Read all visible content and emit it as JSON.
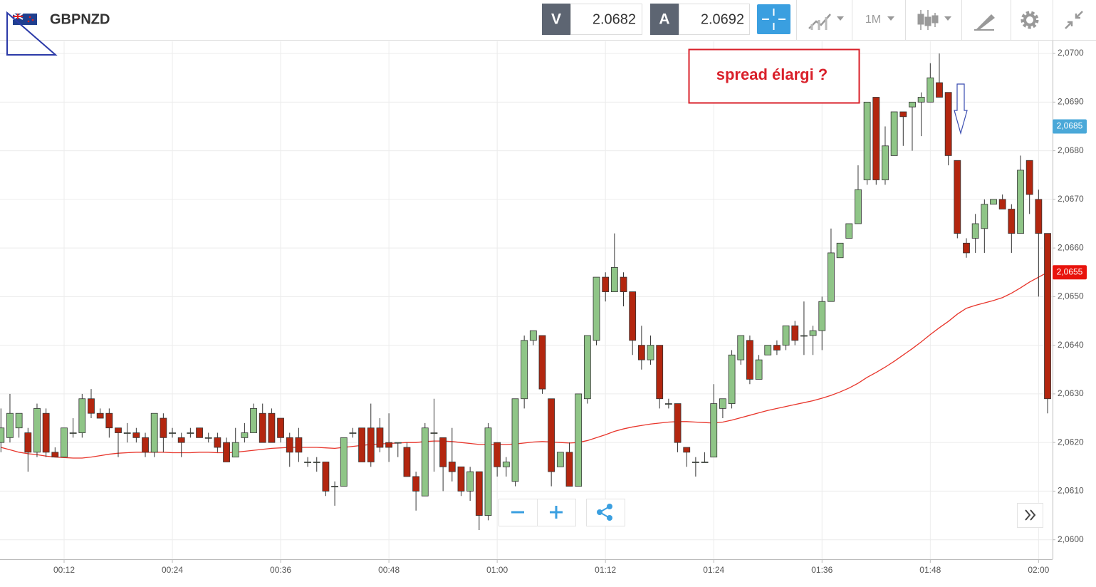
{
  "header": {
    "symbol": "GBPNZD",
    "bid_label": "V",
    "bid": 2.0682,
    "ask_label": "A",
    "ask": 2.0692,
    "timeframe": "1M"
  },
  "chart_data": {
    "type": "candlestick",
    "annotation": "spread élargi ?",
    "up_color": "#8fc587",
    "down_color": "#b3260f",
    "categories": [
      null,
      null,
      null,
      null,
      null,
      null,
      null,
      "00:12",
      null,
      null,
      null,
      null,
      null,
      null,
      null,
      null,
      null,
      null,
      null,
      "00:24",
      null,
      null,
      null,
      null,
      null,
      null,
      null,
      null,
      null,
      null,
      null,
      "00:36",
      null,
      null,
      null,
      null,
      null,
      null,
      null,
      null,
      null,
      null,
      null,
      "00:48",
      null,
      null,
      null,
      null,
      null,
      null,
      null,
      null,
      null,
      null,
      null,
      "01:00",
      null,
      null,
      null,
      null,
      null,
      null,
      null,
      null,
      null,
      null,
      null,
      "01:12",
      null,
      null,
      null,
      null,
      null,
      null,
      null,
      null,
      null,
      null,
      null,
      "01:24",
      null,
      null,
      null,
      null,
      null,
      null,
      null,
      null,
      null,
      null,
      null,
      "01:36",
      null,
      null,
      null,
      null,
      null,
      null,
      null,
      null,
      null,
      null,
      null,
      "01:48",
      null,
      null,
      null,
      null,
      null,
      null,
      null,
      null,
      null,
      null,
      null,
      "02:00",
      null
    ],
    "open": [
      2.062,
      2.0621,
      2.0623,
      2.0622,
      2.0618,
      2.0626,
      2.0618,
      2.0617,
      2.0622,
      2.0622,
      2.0629,
      2.0626,
      2.0626,
      2.0623,
      2.0622,
      2.0622,
      2.0621,
      2.0618,
      2.0625,
      2.0622,
      2.0621,
      2.0622,
      2.0623,
      2.0621,
      2.0621,
      2.062,
      2.0617,
      2.0621,
      2.0622,
      2.0626,
      2.0626,
      2.0625,
      2.0621,
      2.0621,
      2.0616,
      2.0616,
      2.0616,
      2.0611,
      2.0611,
      2.0622,
      2.0623,
      2.0623,
      2.0623,
      2.062,
      2.062,
      2.0619,
      2.0613,
      2.0609,
      2.0622,
      2.0621,
      2.0616,
      2.0615,
      2.061,
      2.0614,
      2.0605,
      2.062,
      2.0615,
      2.0612,
      2.0629,
      2.0641,
      2.0642,
      2.0629,
      2.0615,
      2.0618,
      2.0611,
      2.0629,
      2.0641,
      2.0654,
      2.0651,
      2.0654,
      2.0651,
      2.064,
      2.0637,
      2.064,
      2.0628,
      2.0628,
      2.0619,
      2.0616,
      2.0616,
      2.0617,
      2.0627,
      2.0628,
      2.0637,
      2.0641,
      2.0633,
      2.0638,
      2.064,
      2.064,
      2.0644,
      2.0642,
      2.0642,
      2.0643,
      2.0649,
      2.0658,
      2.0662,
      2.0665,
      2.0674,
      2.0691,
      2.0674,
      2.0679,
      2.0688,
      2.0689,
      2.069,
      2.069,
      2.0694,
      2.0692,
      2.0678,
      2.0661,
      2.0662,
      2.0664,
      2.0669,
      2.067,
      2.0668,
      2.0663,
      2.0678,
      2.067,
      2.0663
    ],
    "high": [
      2.0627,
      2.063,
      2.0626,
      2.0623,
      2.0628,
      2.0627,
      2.0619,
      2.0623,
      2.0625,
      2.063,
      2.0631,
      2.0627,
      2.0627,
      2.0623,
      2.0624,
      2.0623,
      2.0622,
      2.0626,
      2.0626,
      2.0623,
      2.0622,
      2.0623,
      2.0623,
      2.0622,
      2.0622,
      2.0621,
      2.0623,
      2.0624,
      2.0628,
      2.0628,
      2.0627,
      2.0625,
      2.0622,
      2.0623,
      2.0617,
      2.0617,
      2.0616,
      2.0612,
      2.0621,
      2.0623,
      2.0623,
      2.0628,
      2.0625,
      2.0626,
      2.062,
      2.062,
      2.0614,
      2.0624,
      2.0629,
      2.0621,
      2.0623,
      2.0615,
      2.0615,
      2.0614,
      2.0624,
      2.062,
      2.0617,
      2.0629,
      2.0642,
      2.0643,
      2.0642,
      2.0629,
      2.0618,
      2.062,
      2.063,
      2.0642,
      2.0654,
      2.0655,
      2.0663,
      2.0655,
      2.0651,
      2.0644,
      2.0642,
      2.064,
      2.0629,
      2.0628,
      2.0619,
      2.0617,
      2.0618,
      2.0632,
      2.0629,
      2.0639,
      2.0642,
      2.0642,
      2.0638,
      2.064,
      2.0641,
      2.0644,
      2.0645,
      2.0649,
      2.0644,
      2.065,
      2.0664,
      2.0661,
      2.0665,
      2.0677,
      2.069,
      2.0691,
      2.0685,
      2.0688,
      2.0688,
      2.069,
      2.0692,
      2.0698,
      2.07,
      2.0692,
      2.0678,
      2.0662,
      2.0667,
      2.067,
      2.067,
      2.0671,
      2.0669,
      2.0679,
      2.0678,
      2.0672,
      2.0663
    ],
    "low": [
      2.0618,
      2.062,
      2.0621,
      2.0614,
      2.0617,
      2.0617,
      2.0617,
      2.0617,
      2.0621,
      2.0621,
      2.0625,
      2.0625,
      2.0621,
      2.0617,
      2.062,
      2.062,
      2.0617,
      2.0617,
      2.0618,
      2.0621,
      2.0617,
      2.0621,
      2.0621,
      2.062,
      2.0618,
      2.0616,
      2.0617,
      2.062,
      2.0622,
      2.062,
      2.062,
      2.062,
      2.0615,
      2.0616,
      2.0615,
      2.0614,
      2.0609,
      2.0607,
      2.0611,
      2.0621,
      2.0616,
      2.0615,
      2.0618,
      2.0616,
      2.0617,
      2.0613,
      2.0606,
      2.0609,
      2.0614,
      2.061,
      2.0612,
      2.0609,
      2.0608,
      2.0602,
      2.0604,
      2.0613,
      2.0613,
      2.0611,
      2.0627,
      2.064,
      2.063,
      2.0611,
      2.0615,
      2.0611,
      2.0611,
      2.0628,
      2.064,
      2.0649,
      2.0651,
      2.0648,
      2.0638,
      2.0635,
      2.0636,
      2.0627,
      2.0627,
      2.0618,
      2.0615,
      2.0613,
      2.0616,
      2.0617,
      2.0625,
      2.0627,
      2.0636,
      2.0632,
      2.0633,
      2.0638,
      2.0638,
      2.0639,
      2.064,
      2.0638,
      2.0638,
      2.0639,
      2.0649,
      2.0658,
      2.0662,
      2.0665,
      2.0673,
      2.0673,
      2.0673,
      2.0679,
      2.0681,
      2.068,
      2.0683,
      2.069,
      2.0691,
      2.0677,
      2.0662,
      2.0658,
      2.0659,
      2.0659,
      2.0669,
      2.0668,
      2.0659,
      2.0663,
      2.0667,
      2.065,
      2.0626
    ],
    "close": [
      2.0623,
      2.0626,
      2.0626,
      2.0618,
      2.0627,
      2.0618,
      2.0617,
      2.0623,
      2.0622,
      2.0629,
      2.0626,
      2.0625,
      2.0623,
      2.0622,
      2.0622,
      2.0621,
      2.0618,
      2.0626,
      2.0621,
      2.0622,
      2.062,
      2.0622,
      2.0621,
      2.0621,
      2.0619,
      2.0616,
      2.062,
      2.0622,
      2.0627,
      2.062,
      2.062,
      2.0621,
      2.0618,
      2.0618,
      2.0616,
      2.0616,
      2.061,
      2.0611,
      2.0621,
      2.0622,
      2.0616,
      2.0616,
      2.0619,
      2.0619,
      2.062,
      2.0613,
      2.061,
      2.0623,
      2.0622,
      2.0615,
      2.0614,
      2.061,
      2.0614,
      2.0605,
      2.0623,
      2.0615,
      2.0616,
      2.0629,
      2.0641,
      2.0643,
      2.0631,
      2.0614,
      2.0618,
      2.0611,
      2.063,
      2.0642,
      2.0654,
      2.0651,
      2.0656,
      2.0651,
      2.0641,
      2.0637,
      2.064,
      2.0629,
      2.0628,
      2.062,
      2.0618,
      2.0616,
      2.0616,
      2.0628,
      2.0629,
      2.0638,
      2.0642,
      2.0633,
      2.0637,
      2.064,
      2.0639,
      2.0644,
      2.0641,
      2.0642,
      2.0643,
      2.0649,
      2.0659,
      2.0661,
      2.0665,
      2.0672,
      2.069,
      2.0674,
      2.0681,
      2.0688,
      2.0687,
      2.069,
      2.0691,
      2.0695,
      2.0691,
      2.0679,
      2.0663,
      2.0659,
      2.0665,
      2.0669,
      2.067,
      2.0668,
      2.0663,
      2.0676,
      2.0671,
      2.0663,
      2.0629
    ],
    "ma": {
      "color": "#e8352b",
      "values": [
        2.0619,
        2.06185,
        2.0618,
        2.06177,
        2.06175,
        2.06172,
        2.0617,
        2.06169,
        2.06168,
        2.06168,
        2.0617,
        2.06173,
        2.06176,
        2.06178,
        2.06179,
        2.0618,
        2.0618,
        2.0618,
        2.0618,
        2.06179,
        2.06179,
        2.06179,
        2.0618,
        2.0618,
        2.06179,
        2.06179,
        2.0618,
        2.06182,
        2.06184,
        2.06186,
        2.06188,
        2.06189,
        2.0619,
        2.0619,
        2.0619,
        2.0619,
        2.06189,
        2.06188,
        2.0619,
        2.06192,
        2.06194,
        2.06196,
        2.06197,
        2.06198,
        2.06199,
        2.062,
        2.062,
        2.06202,
        2.06203,
        2.06203,
        2.06202,
        2.062,
        2.06198,
        2.06196,
        2.06196,
        2.06196,
        2.06196,
        2.06197,
        2.06199,
        2.06201,
        2.06202,
        2.06201,
        2.062,
        2.06199,
        2.062,
        2.06204,
        2.0621,
        2.06216,
        2.06223,
        2.06228,
        2.06232,
        2.06235,
        2.06238,
        2.0624,
        2.06242,
        2.06243,
        2.06243,
        2.06242,
        2.06241,
        2.0624,
        2.06242,
        2.06246,
        2.06251,
        2.06256,
        2.06261,
        2.06266,
        2.0627,
        2.06274,
        2.06278,
        2.06282,
        2.06286,
        2.06291,
        2.06297,
        2.06304,
        2.06312,
        2.06322,
        2.06334,
        2.06344,
        2.06355,
        2.06367,
        2.0638,
        2.06393,
        2.06407,
        2.06422,
        2.06436,
        2.06449,
        2.06464,
        2.06476,
        2.06482,
        2.06487,
        2.06492,
        2.06498,
        2.06507,
        2.06518,
        2.0653,
        2.0654,
        2.0655
      ]
    },
    "price_labels": [
      {
        "value": 2.0685,
        "label": "2,0685",
        "color": "#4aa8d8"
      },
      {
        "value": 2.0655,
        "label": "2,0655",
        "color": "#e8130c"
      }
    ],
    "ylim": [
      2.0596,
      2.07025
    ],
    "yticks": [
      {
        "value": 2.06,
        "label": "2,0600"
      },
      {
        "value": 2.061,
        "label": "2,0610"
      },
      {
        "value": 2.062,
        "label": "2,0620"
      },
      {
        "value": 2.063,
        "label": "2,0630"
      },
      {
        "value": 2.064,
        "label": "2,0640"
      },
      {
        "value": 2.065,
        "label": "2,0650"
      },
      {
        "value": 2.066,
        "label": "2,0660"
      },
      {
        "value": 2.067,
        "label": "2,0670"
      },
      {
        "value": 2.068,
        "label": "2,0680"
      },
      {
        "value": 2.069,
        "label": "2,0690"
      },
      {
        "value": 2.07,
        "label": "2,0700"
      }
    ],
    "grid": true
  }
}
